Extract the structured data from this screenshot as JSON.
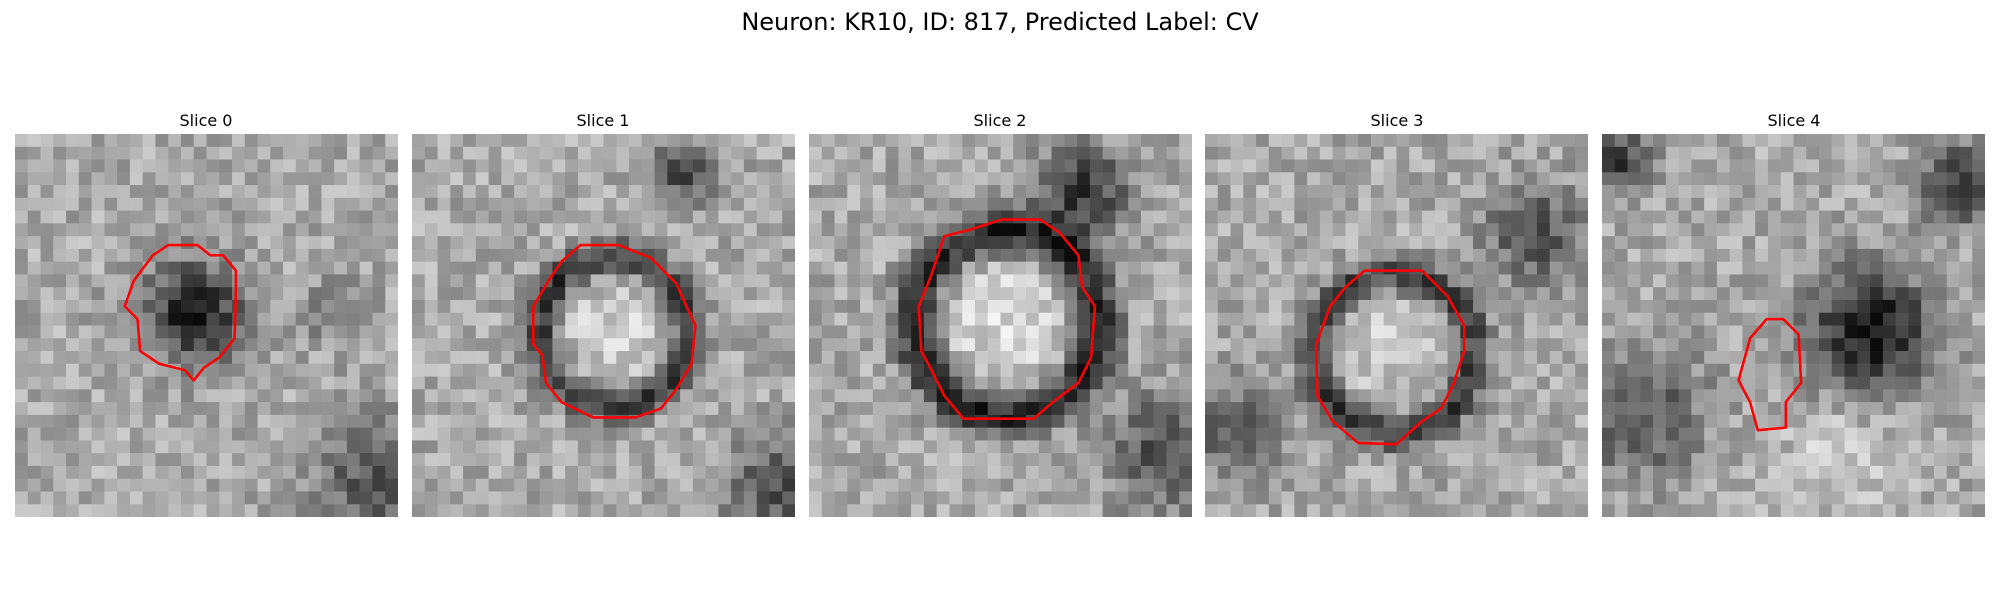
{
  "title": "Neuron: KR10, ID: 817, Predicted Label: CV",
  "panels": [
    {
      "title": "Slice 0"
    },
    {
      "title": "Slice 1"
    },
    {
      "title": "Slice 2"
    },
    {
      "title": "Slice 3"
    },
    {
      "title": "Slice 4"
    }
  ]
}
